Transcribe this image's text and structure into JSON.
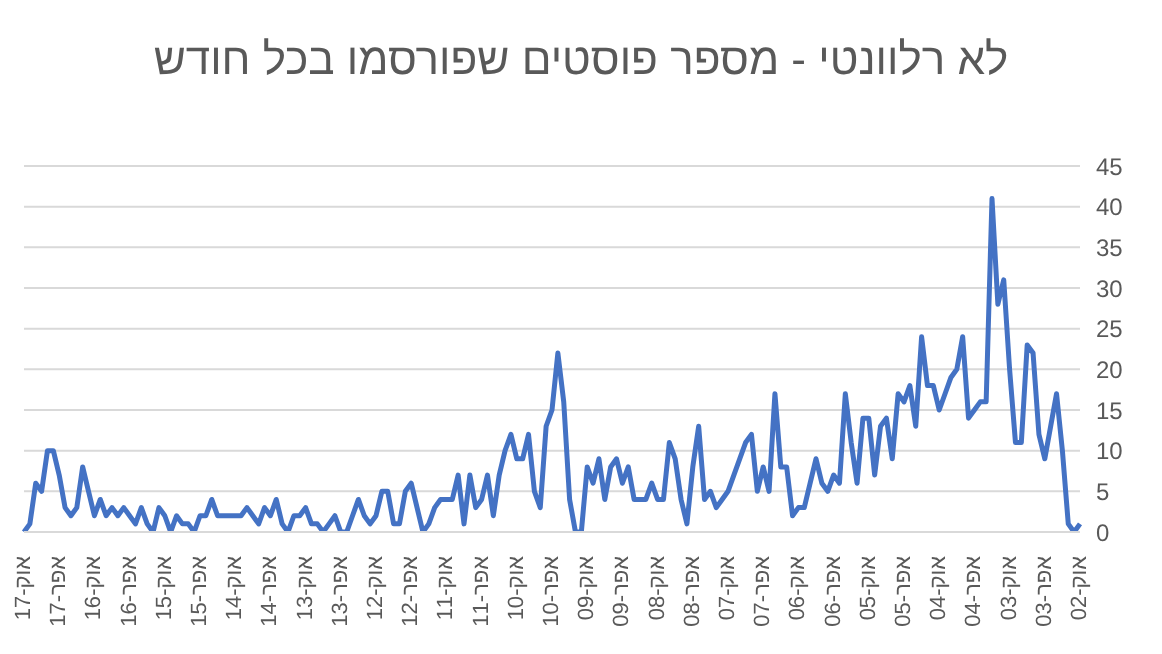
{
  "chart_data": {
    "type": "line",
    "title": "לא רלוונטי - מספר פוסטים שפורסמו בכל חודש",
    "categories": [
      "אוק-17",
      null,
      null,
      null,
      null,
      null,
      "אפר-17",
      null,
      null,
      null,
      null,
      null,
      "אוק-16",
      null,
      null,
      null,
      null,
      null,
      "אפר-16",
      null,
      null,
      null,
      null,
      null,
      "אוק-15",
      null,
      null,
      null,
      null,
      null,
      "אפר-15",
      null,
      null,
      null,
      null,
      null,
      "אוק-14",
      null,
      null,
      null,
      null,
      null,
      "אפר-14",
      null,
      null,
      null,
      null,
      null,
      "אוק-13",
      null,
      null,
      null,
      null,
      null,
      "אפר-13",
      null,
      null,
      null,
      null,
      null,
      "אוק-12",
      null,
      null,
      null,
      null,
      null,
      "אפר-12",
      null,
      null,
      null,
      null,
      null,
      "אוק-11",
      null,
      null,
      null,
      null,
      null,
      "אפר-11",
      null,
      null,
      null,
      null,
      null,
      "אוק-10",
      null,
      null,
      null,
      null,
      null,
      "אפר-10",
      null,
      null,
      null,
      null,
      null,
      "אוק-09",
      null,
      null,
      null,
      null,
      null,
      "אפר-09",
      null,
      null,
      null,
      null,
      null,
      "אוק-08",
      null,
      null,
      null,
      null,
      null,
      "אפר-08",
      null,
      null,
      null,
      null,
      null,
      "אוק-07",
      null,
      null,
      null,
      null,
      null,
      "אפר-07",
      null,
      null,
      null,
      null,
      null,
      "אוק-06",
      null,
      null,
      null,
      null,
      null,
      "אפר-06",
      null,
      null,
      null,
      null,
      null,
      "אוק-05",
      null,
      null,
      null,
      null,
      null,
      "אפר-05",
      null,
      null,
      null,
      null,
      null,
      "אוק-04",
      null,
      null,
      null,
      null,
      null,
      "אפר-04",
      null,
      null,
      null,
      null,
      null,
      "אוק-03",
      null,
      null,
      null,
      null,
      null,
      "אפר-03",
      null,
      null,
      null,
      null,
      null,
      "אוק-02"
    ],
    "series": [
      {
        "color": "#4472c4",
        "values": [
          0,
          1,
          6,
          5,
          10,
          10,
          7,
          3,
          2,
          3,
          8,
          5,
          2,
          4,
          2,
          3,
          2,
          3,
          2,
          1,
          3,
          1,
          0,
          3,
          2,
          0,
          2,
          1,
          1,
          0,
          2,
          2,
          4,
          2,
          2,
          2,
          2,
          2,
          3,
          2,
          1,
          3,
          2,
          4,
          1,
          0,
          2,
          2,
          3,
          1,
          1,
          0,
          1,
          2,
          0,
          0,
          2,
          4,
          2,
          1,
          2,
          5,
          5,
          1,
          1,
          5,
          6,
          3,
          0,
          1,
          3,
          4,
          4,
          4,
          7,
          1,
          7,
          3,
          4,
          7,
          2,
          7,
          10,
          12,
          9,
          9,
          12,
          5,
          3,
          13,
          15,
          22,
          16,
          4,
          0,
          0,
          8,
          6,
          9,
          4,
          8,
          9,
          6,
          8,
          4,
          4,
          4,
          6,
          4,
          4,
          11,
          9,
          4,
          1,
          8,
          13,
          4,
          5,
          3,
          4,
          5,
          7,
          9,
          11,
          12,
          5,
          8,
          5,
          17,
          8,
          8,
          2,
          3,
          3,
          6,
          9,
          6,
          5,
          7,
          6,
          17,
          11,
          6,
          14,
          14,
          7,
          13,
          14,
          9,
          17,
          16,
          18,
          13,
          24,
          18,
          18,
          15,
          17,
          19,
          20,
          24,
          14,
          15,
          16,
          16,
          41,
          28,
          31,
          20,
          11,
          11,
          23,
          22,
          12,
          9,
          13,
          17,
          10,
          1,
          0,
          1
        ]
      }
    ],
    "ylim": [
      0,
      45
    ],
    "yticks": [
      0,
      5,
      10,
      15,
      20,
      25,
      30,
      35,
      40,
      45
    ],
    "grid": "y",
    "legend": false,
    "marker": "none",
    "line_style": "solid"
  }
}
